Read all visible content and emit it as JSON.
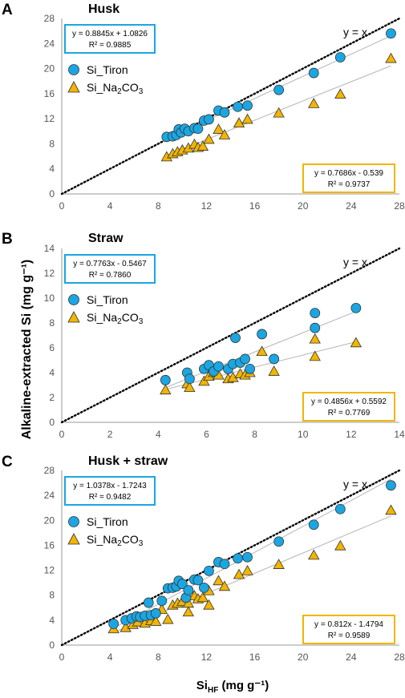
{
  "figure": {
    "ylabel": "Alkaline-extracted Si (mg g⁻¹)",
    "xlabel_main": "Si",
    "xlabel_sub": "HF",
    "xlabel_unit": " (mg g⁻¹)"
  },
  "chart_data": [
    {
      "type": "scatter",
      "panel": "A",
      "title": "Husk",
      "xlim": [
        0,
        28
      ],
      "ylim": [
        0,
        28
      ],
      "xticks": [
        "0",
        "4",
        "8",
        "12",
        "16",
        "20",
        "24",
        "28"
      ],
      "yticks": [
        "0",
        "4",
        "8",
        "12",
        "16",
        "20",
        "24",
        "28"
      ],
      "identity_label": "y = x",
      "colors": {
        "tiron": "#1ba6e2",
        "na2co3": "#f2b500"
      },
      "series": [
        {
          "name": "Si_Tiron",
          "marker": "circle",
          "x": [
            8.7,
            9.2,
            9.5,
            9.7,
            9.9,
            10.2,
            10.5,
            11.0,
            11.3,
            11.8,
            12.2,
            13.0,
            13.5,
            14.6,
            15.4,
            18.0,
            20.9,
            23.1,
            27.3
          ],
          "y": [
            9.1,
            9.2,
            9.4,
            10.3,
            9.8,
            10.4,
            10.0,
            10.5,
            10.4,
            11.7,
            11.9,
            13.3,
            13.0,
            13.9,
            14.1,
            16.6,
            19.3,
            21.8,
            25.6
          ]
        },
        {
          "name": "Si_Na2CO3",
          "marker": "triangle",
          "x": [
            8.7,
            9.2,
            9.6,
            10.0,
            10.5,
            11.0,
            11.3,
            11.7,
            12.2,
            13.0,
            13.5,
            14.7,
            15.4,
            18.0,
            20.9,
            23.1,
            27.3
          ],
          "y": [
            5.9,
            6.4,
            6.7,
            7.0,
            7.3,
            7.9,
            7.4,
            7.6,
            8.7,
            10.3,
            9.4,
            11.3,
            11.9,
            12.9,
            14.4,
            15.9,
            21.6
          ]
        }
      ],
      "fits": [
        {
          "equation": "y = 0.8845x + 1.0826",
          "r2": "R² = 0.9885",
          "slope": 0.8845,
          "intercept": 1.0826,
          "x_range": [
            8.7,
            27.3
          ]
        },
        {
          "equation": "y = 0.7686x - 0.539",
          "r2": "R² = 0.9737",
          "slope": 0.7686,
          "intercept": -0.539,
          "x_range": [
            8.7,
            27.3
          ]
        }
      ]
    },
    {
      "type": "scatter",
      "panel": "B",
      "title": "Straw",
      "xlim": [
        0,
        14
      ],
      "ylim": [
        0,
        14
      ],
      "xticks": [
        "0",
        "2",
        "4",
        "6",
        "8",
        "10",
        "12",
        "14"
      ],
      "yticks": [
        "0",
        "2",
        "4",
        "6",
        "8",
        "10",
        "12",
        "14"
      ],
      "identity_label": "y = x",
      "colors": {
        "tiron": "#1ba6e2",
        "na2co3": "#f2b500"
      },
      "series": [
        {
          "name": "Si_Tiron",
          "marker": "circle",
          "x": [
            4.3,
            5.2,
            5.3,
            5.9,
            6.1,
            6.3,
            6.5,
            6.9,
            7.1,
            7.2,
            7.4,
            7.6,
            7.8,
            8.3,
            8.8,
            10.5,
            10.5,
            12.2
          ],
          "y": [
            3.4,
            4.0,
            3.5,
            4.3,
            4.6,
            4.1,
            4.5,
            4.3,
            4.7,
            6.8,
            4.8,
            5.1,
            4.3,
            7.1,
            5.1,
            7.6,
            8.8,
            9.2
          ]
        },
        {
          "name": "Si_Na2CO3",
          "marker": "triangle",
          "x": [
            4.3,
            5.2,
            5.3,
            5.9,
            6.1,
            6.3,
            6.5,
            6.9,
            7.1,
            7.4,
            7.6,
            7.8,
            8.3,
            8.8,
            10.5,
            10.5,
            12.2
          ],
          "y": [
            2.6,
            3.1,
            2.8,
            3.3,
            3.7,
            4.0,
            3.8,
            3.5,
            3.6,
            3.9,
            3.8,
            4.0,
            5.7,
            4.1,
            5.3,
            6.7,
            6.4
          ]
        }
      ],
      "fits": [
        {
          "equation": "y = 0.7763x - 0.5467",
          "r2": "R² = 0.7860",
          "slope": 0.7763,
          "intercept": -0.5467,
          "x_range": [
            4.3,
            12.2
          ]
        },
        {
          "equation": "y = 0.4856x + 0.5592",
          "r2": "R² = 0.7769",
          "slope": 0.4856,
          "intercept": 0.5592,
          "x_range": [
            4.3,
            12.2
          ]
        }
      ]
    },
    {
      "type": "scatter",
      "panel": "C",
      "title": "Husk + straw",
      "xlim": [
        0,
        28
      ],
      "ylim": [
        0,
        28
      ],
      "xticks": [
        "0",
        "4",
        "8",
        "12",
        "16",
        "20",
        "24",
        "28"
      ],
      "yticks": [
        "0",
        "4",
        "8",
        "12",
        "16",
        "20",
        "24",
        "28"
      ],
      "identity_label": "y = x",
      "colors": {
        "tiron": "#1ba6e2",
        "na2co3": "#f2b500"
      },
      "series": [
        {
          "name": "Si_Tiron",
          "marker": "circle",
          "x": [
            4.3,
            5.3,
            5.8,
            6.2,
            6.5,
            6.9,
            7.2,
            7.4,
            7.8,
            8.3,
            8.8,
            9.2,
            9.5,
            9.7,
            10.0,
            10.3,
            10.5,
            11.0,
            11.3,
            11.8,
            12.2,
            13.0,
            13.5,
            14.6,
            15.4,
            18.0,
            20.9,
            23.1,
            27.3
          ],
          "y": [
            3.4,
            4.0,
            4.3,
            4.6,
            4.5,
            4.7,
            6.8,
            4.8,
            5.1,
            7.1,
            9.1,
            9.2,
            9.4,
            10.3,
            9.8,
            7.6,
            8.8,
            10.5,
            10.4,
            9.2,
            11.9,
            13.3,
            13.0,
            13.9,
            14.1,
            16.6,
            19.3,
            21.8,
            25.6
          ]
        },
        {
          "name": "Si_Na2CO3",
          "marker": "triangle",
          "x": [
            4.3,
            5.3,
            5.9,
            6.3,
            6.9,
            7.4,
            7.8,
            8.3,
            8.8,
            9.2,
            9.6,
            10.0,
            10.5,
            10.5,
            11.0,
            11.3,
            11.7,
            12.2,
            12.2,
            13.0,
            13.5,
            14.7,
            15.4,
            18.0,
            20.9,
            23.1,
            27.3
          ],
          "y": [
            2.6,
            2.8,
            3.3,
            3.7,
            3.5,
            3.9,
            3.8,
            5.7,
            4.1,
            6.4,
            6.7,
            7.0,
            5.3,
            6.7,
            7.9,
            7.4,
            7.6,
            8.7,
            6.4,
            10.3,
            9.4,
            11.3,
            11.9,
            12.9,
            14.4,
            15.9,
            21.6
          ]
        }
      ],
      "fits": [
        {
          "equation": "y = 1.0378x - 1.7243",
          "r2": "R² = 0.9482",
          "slope": 1.0378,
          "intercept": -1.7243,
          "x_range": [
            4.3,
            27.3
          ]
        },
        {
          "equation": "y = 0.812x - 1.4794",
          "r2": "R² = 0.9589",
          "slope": 0.812,
          "intercept": -1.4794,
          "x_range": [
            4.3,
            27.3
          ]
        }
      ]
    }
  ]
}
